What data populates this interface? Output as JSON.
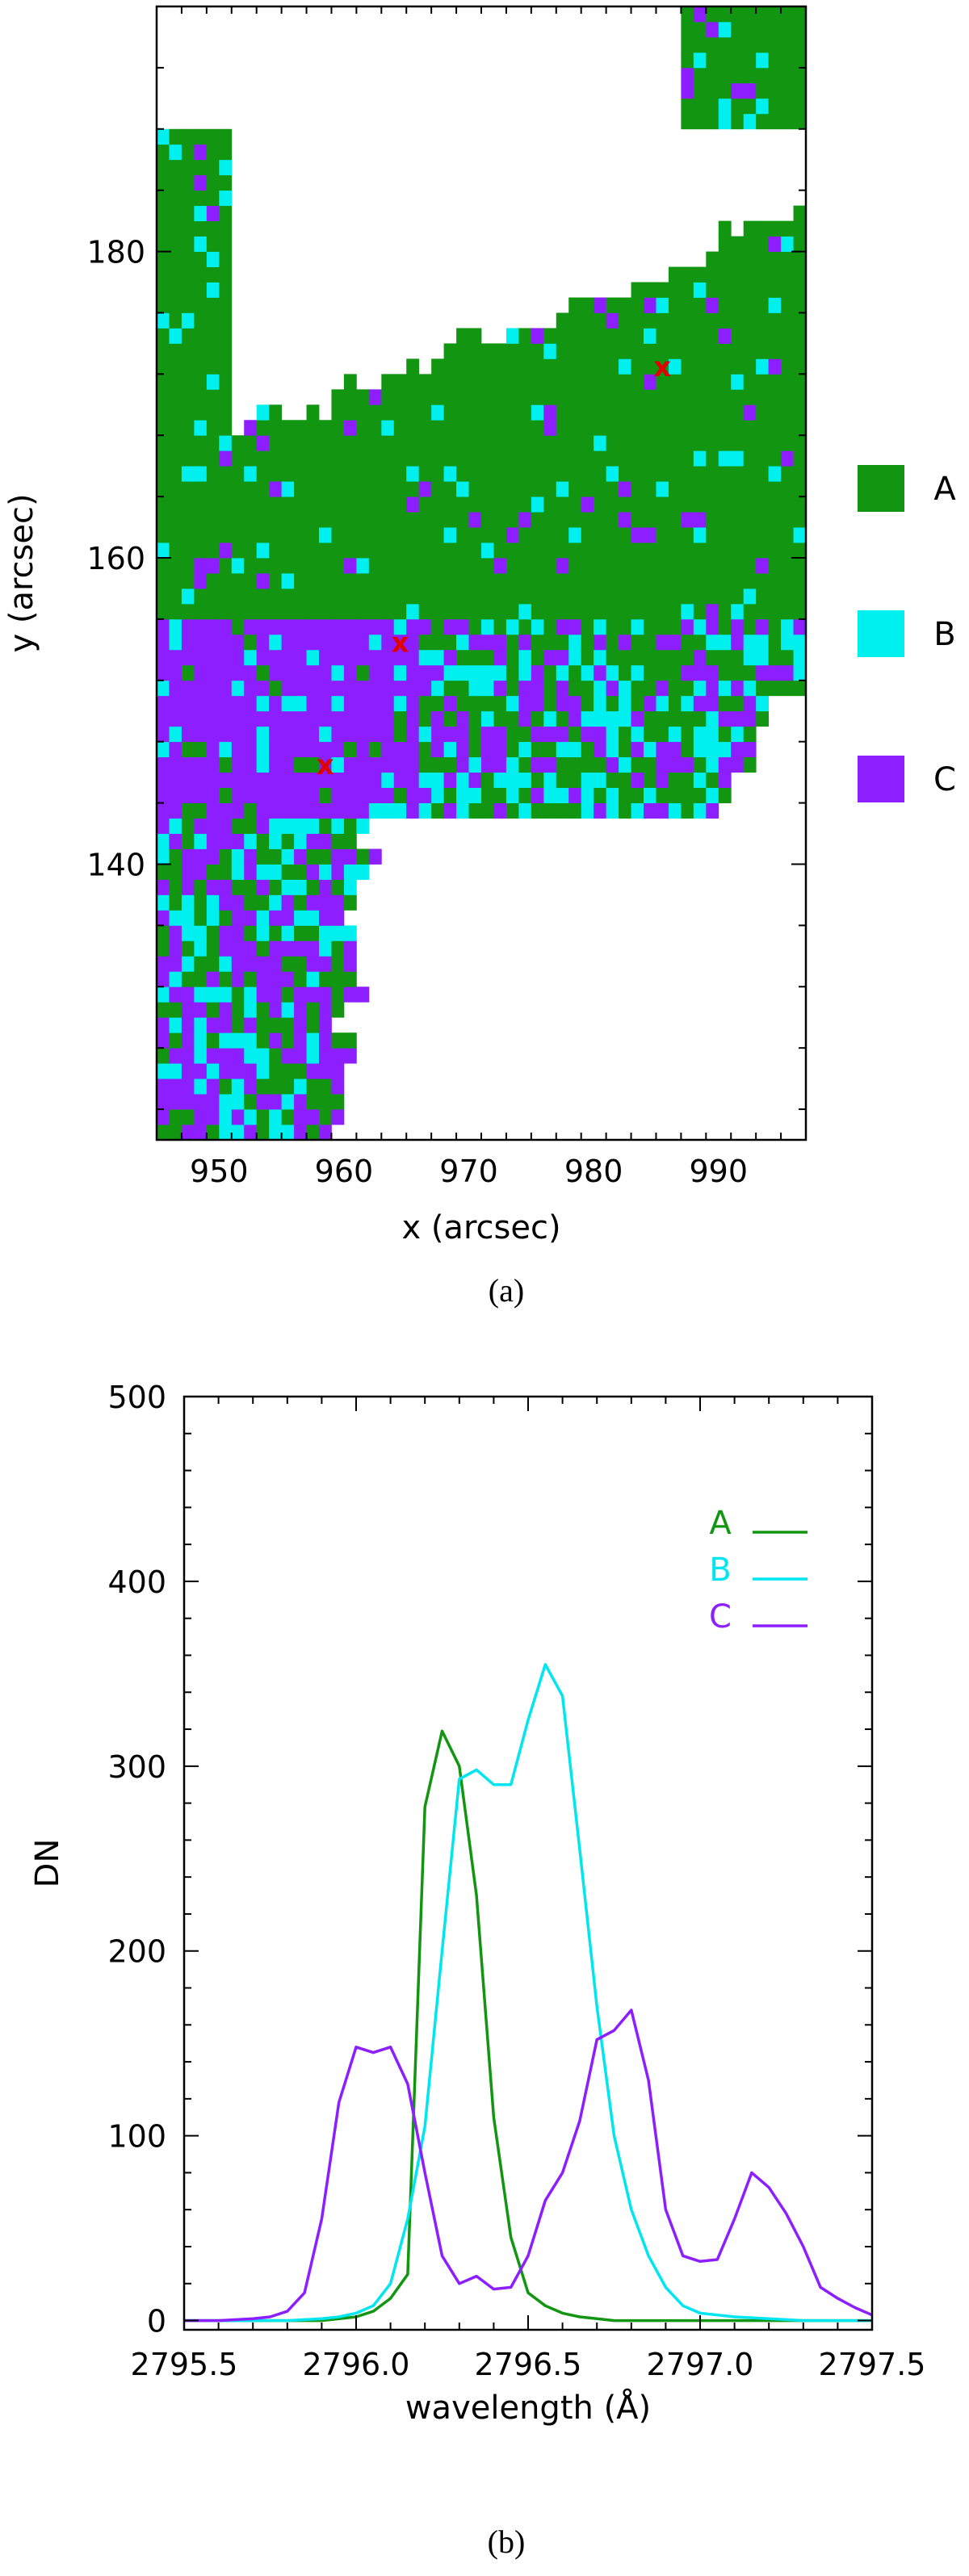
{
  "chart_data": [
    {
      "type": "heatmap",
      "panel_label": "(a)",
      "xlabel": "x (arcsec)",
      "ylabel": "y (arcsec)",
      "xlim": [
        945,
        997
      ],
      "ylim": [
        122,
        196
      ],
      "x_ticks": [
        950,
        960,
        970,
        980,
        990
      ],
      "y_ticks": [
        140,
        160,
        180
      ],
      "categories": [
        {
          "name": "A",
          "color": "#129612"
        },
        {
          "name": "B",
          "color": "#00f0f0"
        },
        {
          "name": "C",
          "color": "#8c1eff"
        }
      ],
      "markers": [
        {
          "label": "x",
          "x": 985.5,
          "y": 172.5,
          "color": "#e00000"
        },
        {
          "label": "x",
          "x": 964.5,
          "y": 154.5,
          "color": "#e00000"
        },
        {
          "label": "x",
          "x": 958.5,
          "y": 146.5,
          "color": "#e00000"
        }
      ]
    },
    {
      "type": "line",
      "panel_label": "(b)",
      "xlabel": "wavelength (Å)",
      "ylabel": "DN",
      "xlim": [
        2795.5,
        2797.5
      ],
      "ylim": [
        -5,
        500
      ],
      "x_ticks": [
        2795.5,
        2796.0,
        2796.5,
        2797.0,
        2797.5
      ],
      "x_tick_labels": [
        "2795.5",
        "2796.0",
        "2796.5",
        "2797.0",
        "2797.5"
      ],
      "y_ticks": [
        0,
        100,
        200,
        300,
        400,
        500
      ],
      "legend_position": "top-right",
      "series": [
        {
          "name": "A",
          "color": "#129612",
          "x": [
            2795.5,
            2795.6,
            2795.7,
            2795.8,
            2795.9,
            2796.0,
            2796.05,
            2796.1,
            2796.15,
            2796.2,
            2796.25,
            2796.3,
            2796.35,
            2796.4,
            2796.45,
            2796.5,
            2796.55,
            2796.6,
            2796.65,
            2796.7,
            2796.75,
            2796.8,
            2796.9,
            2797.0,
            2797.1,
            2797.2,
            2797.3,
            2797.4,
            2797.5
          ],
          "y": [
            0,
            0,
            0,
            0,
            0,
            2,
            5,
            12,
            25,
            278,
            319,
            300,
            230,
            110,
            45,
            15,
            8,
            4,
            2,
            1,
            0,
            0,
            0,
            0,
            0,
            0,
            0,
            0,
            0
          ]
        },
        {
          "name": "B",
          "color": "#00e6f0",
          "x": [
            2795.5,
            2795.6,
            2795.7,
            2795.8,
            2795.9,
            2795.95,
            2796.0,
            2796.05,
            2796.1,
            2796.15,
            2796.2,
            2796.25,
            2796.3,
            2796.35,
            2796.4,
            2796.45,
            2796.5,
            2796.55,
            2796.6,
            2796.65,
            2796.7,
            2796.75,
            2796.8,
            2796.85,
            2796.9,
            2796.95,
            2797.0,
            2797.1,
            2797.2,
            2797.3,
            2797.4,
            2797.5
          ],
          "y": [
            0,
            0,
            0,
            0,
            1,
            2,
            4,
            8,
            20,
            55,
            105,
            200,
            293,
            298,
            290,
            290,
            325,
            355,
            338,
            255,
            170,
            100,
            60,
            35,
            18,
            8,
            4,
            2,
            1,
            0,
            0,
            0
          ]
        },
        {
          "name": "C",
          "color": "#8c1eff",
          "x": [
            2795.5,
            2795.6,
            2795.7,
            2795.75,
            2795.8,
            2795.85,
            2795.9,
            2795.95,
            2796.0,
            2796.05,
            2796.1,
            2796.15,
            2796.2,
            2796.25,
            2796.3,
            2796.35,
            2796.4,
            2796.45,
            2796.5,
            2796.55,
            2796.6,
            2796.65,
            2796.7,
            2796.75,
            2796.8,
            2796.85,
            2796.9,
            2796.95,
            2797.0,
            2797.05,
            2797.1,
            2797.15,
            2797.2,
            2797.25,
            2797.3,
            2797.35,
            2797.4,
            2797.45,
            2797.5
          ],
          "y": [
            0,
            0,
            1,
            2,
            5,
            15,
            55,
            118,
            148,
            145,
            148,
            128,
            80,
            35,
            20,
            24,
            17,
            18,
            35,
            65,
            80,
            108,
            152,
            157,
            168,
            130,
            60,
            35,
            32,
            33,
            55,
            80,
            72,
            58,
            40,
            18,
            12,
            7,
            3
          ]
        }
      ]
    }
  ]
}
